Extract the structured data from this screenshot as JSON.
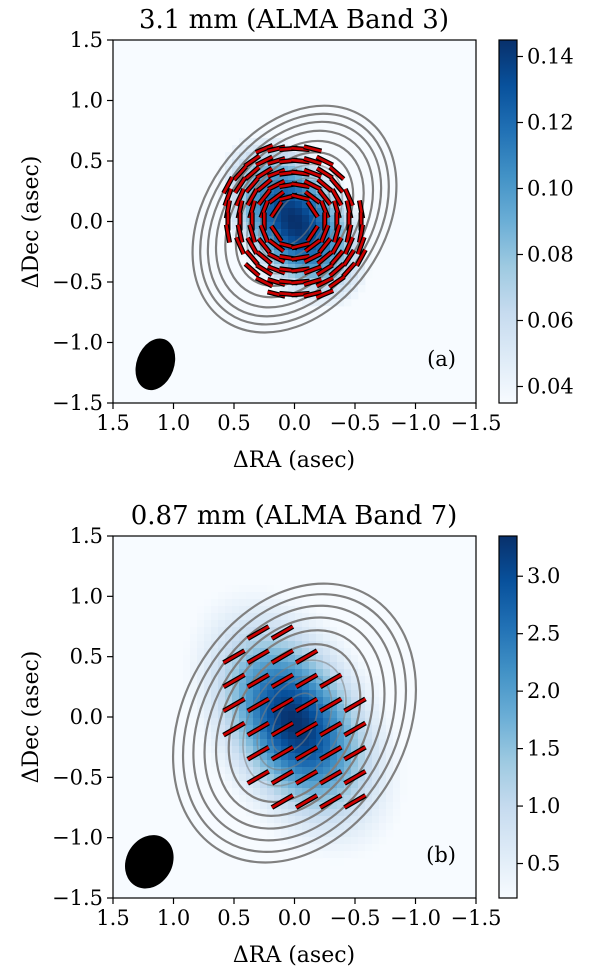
{
  "chart_data": [
    {
      "type": "polarization-map",
      "panel_label": "(a)",
      "title": "3.1 mm (ALMA Band 3)",
      "xlabel": "ΔRA (asec)",
      "ylabel": "ΔDec (asec)",
      "xlim": [
        1.5,
        -1.5
      ],
      "ylim": [
        -1.5,
        1.5
      ],
      "xticks": [
        1.5,
        1.0,
        0.5,
        0.0,
        -0.5,
        -1.0,
        -1.5
      ],
      "yticks": [
        -1.5,
        -1.0,
        -0.5,
        0.0,
        0.5,
        1.0,
        1.5
      ],
      "xtick_labels": [
        "1.5",
        "1.0",
        "0.5",
        "0.0",
        "−0.5",
        "−1.0",
        "−1.5"
      ],
      "ytick_labels": [
        "−1.5",
        "−1.0",
        "−0.5",
        "0.0",
        "0.5",
        "1.0",
        "1.5"
      ],
      "colorbar": {
        "range": [
          0.035,
          0.145
        ],
        "ticks": [
          0.04,
          0.06,
          0.08,
          0.1,
          0.12,
          0.14
        ],
        "tick_labels": [
          "0.04",
          "0.06",
          "0.08",
          "0.10",
          "0.12",
          "0.14"
        ],
        "colormap": "Blues"
      },
      "source": {
        "center": [
          0.0,
          0.0
        ],
        "major_fwhm": 1.15,
        "minor_fwhm": 0.72,
        "pa_deg": 35,
        "peak": 0.145
      },
      "contours": {
        "color": "#808080",
        "center": [
          0.0,
          0.02
        ],
        "pa_deg": 35,
        "semi_axes": [
          [
            1.02,
            0.74
          ],
          [
            0.95,
            0.68
          ],
          [
            0.88,
            0.62
          ],
          [
            0.8,
            0.56
          ],
          [
            0.71,
            0.49
          ],
          [
            0.61,
            0.41
          ],
          [
            0.5,
            0.33
          ],
          [
            0.38,
            0.24
          ],
          [
            0.25,
            0.14
          ]
        ]
      },
      "vectors": {
        "color": "#cc0000",
        "pattern": "azimuthal",
        "center": [
          0.0,
          0.0
        ],
        "grid_step": 0.1,
        "x_range": [
          -0.65,
          0.65
        ],
        "y_range": [
          -0.65,
          0.7
        ],
        "length": 0.15,
        "weak_level": 0.6,
        "rmin": 0.17,
        "rmax": 0.66
      },
      "beam": {
        "center": [
          1.15,
          -1.18
        ],
        "major": 0.44,
        "minor": 0.31,
        "pa_deg": 20,
        "color": "#000000"
      }
    },
    {
      "type": "polarization-map",
      "panel_label": "(b)",
      "title": "0.87 mm (ALMA Band 7)",
      "xlabel": "ΔRA (asec)",
      "ylabel": "ΔDec (asec)",
      "xlim": [
        1.5,
        -1.5
      ],
      "ylim": [
        -1.5,
        1.5
      ],
      "xticks": [
        1.5,
        1.0,
        0.5,
        0.0,
        -0.5,
        -1.0,
        -1.5
      ],
      "yticks": [
        -1.5,
        -1.0,
        -0.5,
        0.0,
        0.5,
        1.0,
        1.5
      ],
      "xtick_labels": [
        "1.5",
        "1.0",
        "0.5",
        "0.0",
        "−0.5",
        "−1.0",
        "−1.5"
      ],
      "ytick_labels": [
        "−1.5",
        "−1.0",
        "−0.5",
        "0.0",
        "0.5",
        "1.0",
        "1.5"
      ],
      "colorbar": {
        "range": [
          0.2,
          3.35
        ],
        "ticks": [
          0.5,
          1.0,
          1.5,
          2.0,
          2.5,
          3.0
        ],
        "tick_labels": [
          "0.5",
          "1.0",
          "1.5",
          "2.0",
          "2.5",
          "3.0"
        ],
        "colormap": "Blues"
      },
      "source": {
        "center": [
          0.0,
          -0.05
        ],
        "major_fwhm": 1.25,
        "minor_fwhm": 0.78,
        "pa_deg": 30,
        "peak": 3.35
      },
      "contours": {
        "color": "#808080",
        "center": [
          0.0,
          -0.05
        ],
        "pa_deg": 30,
        "semi_axes": [
          [
            1.22,
            0.92
          ],
          [
            1.13,
            0.84
          ],
          [
            1.03,
            0.76
          ],
          [
            0.93,
            0.67
          ],
          [
            0.82,
            0.58
          ],
          [
            0.7,
            0.48
          ],
          [
            0.56,
            0.37
          ],
          [
            0.42,
            0.26
          ],
          [
            0.27,
            0.15
          ]
        ]
      },
      "vectors": {
        "color": "#cc0000",
        "pattern": "uniform",
        "angle_from_north_deg": 120,
        "grid_step": 0.2,
        "x_range": [
          -0.8,
          0.9
        ],
        "y_range": [
          -0.8,
          0.9
        ],
        "length": 0.2,
        "edge_level": 0.8
      },
      "beam": {
        "center": [
          1.2,
          -1.2
        ],
        "major": 0.46,
        "minor": 0.38,
        "pa_deg": 30,
        "color": "#000000"
      }
    }
  ]
}
